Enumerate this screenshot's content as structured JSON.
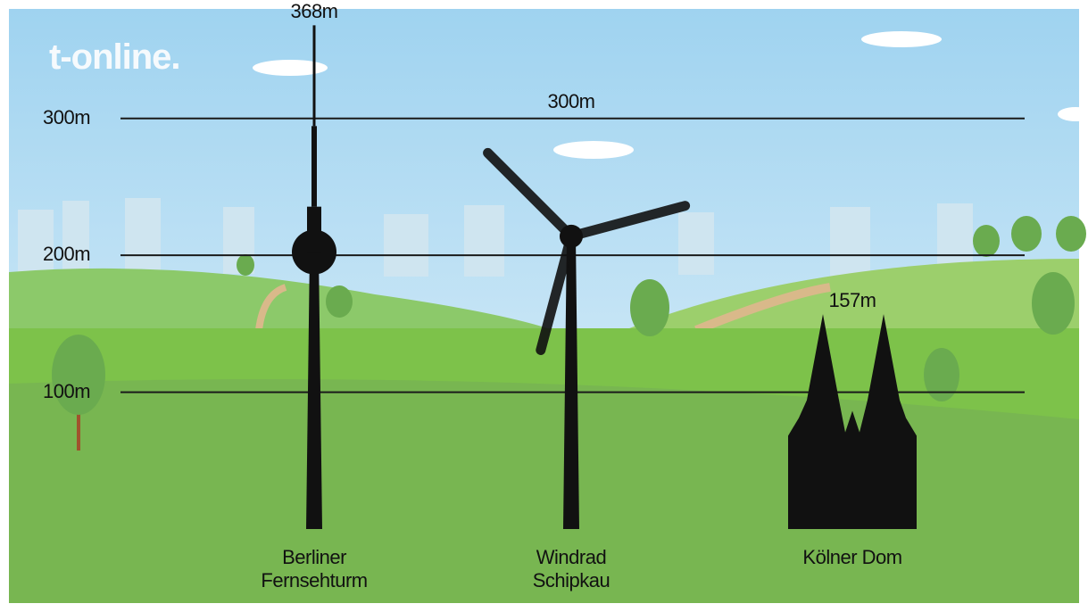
{
  "logo": "t-online.",
  "chart_data": {
    "type": "height-comparison",
    "categories": [
      "Berliner Fernsehturm",
      "Windrad Schipkau",
      "Kölner Dom"
    ],
    "values": [
      368,
      300,
      157
    ],
    "value_labels": [
      "368m",
      "300m",
      "157m"
    ],
    "color": "#111111",
    "ylim": [
      0,
      380
    ],
    "yticks": [
      {
        "value": 100,
        "label": "100m"
      },
      {
        "value": 200,
        "label": "200m"
      },
      {
        "value": 300,
        "label": "300m"
      }
    ],
    "grid": true
  }
}
